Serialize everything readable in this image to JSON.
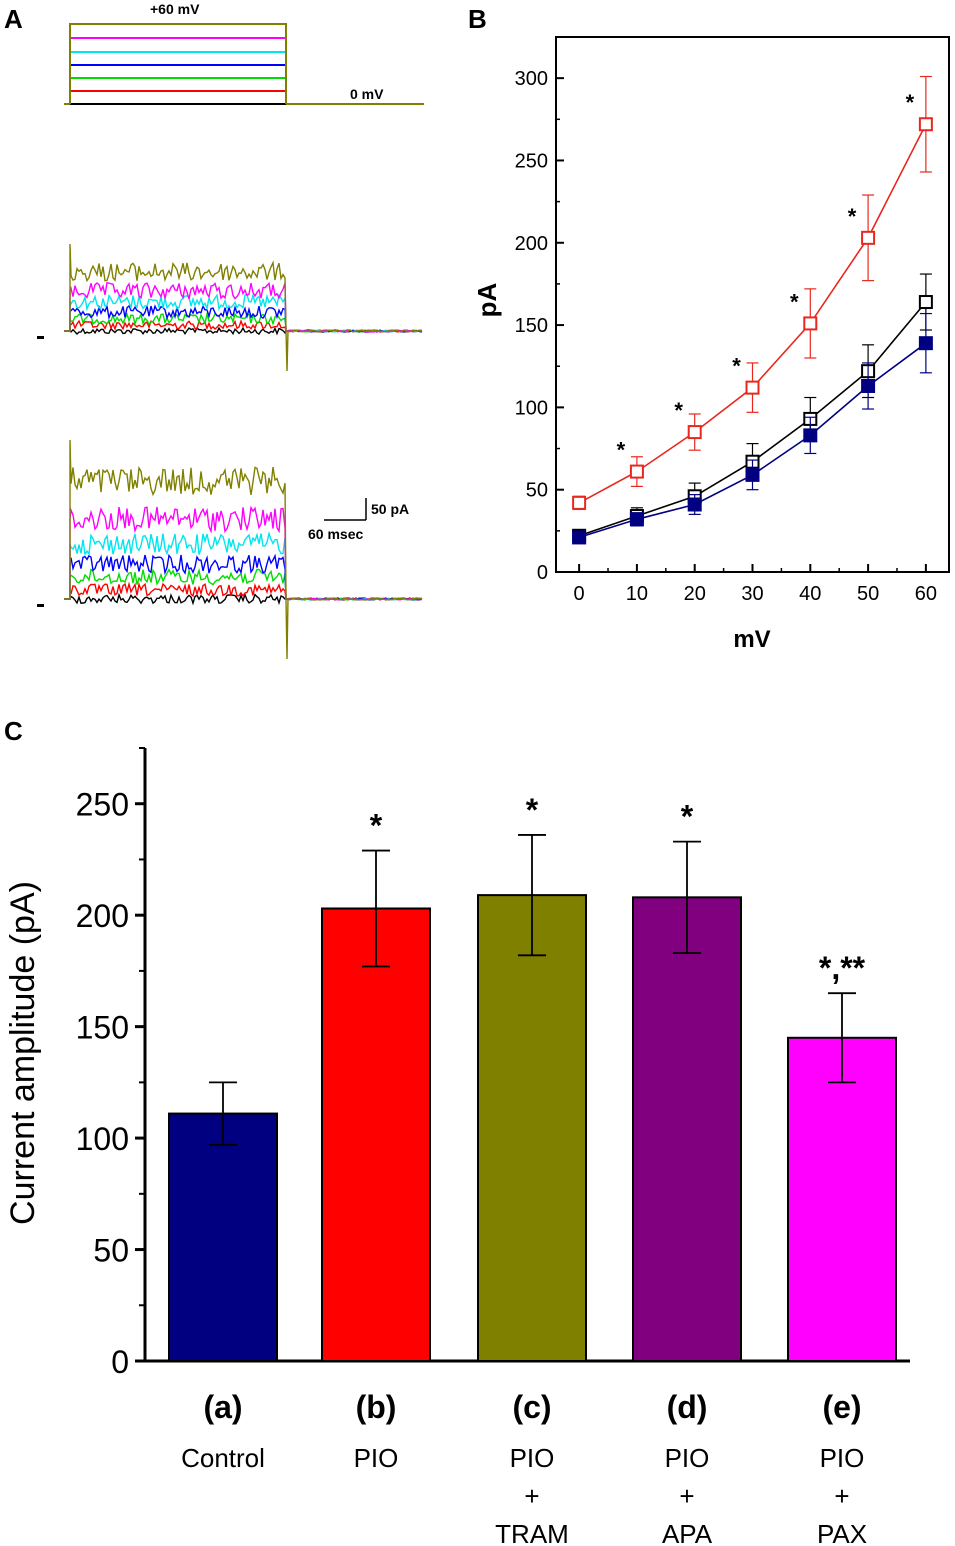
{
  "panels": {
    "a": "A",
    "b": "B",
    "c": "C"
  },
  "colors": {
    "black": "#000000",
    "red": "#ff0000",
    "olive": "#808000",
    "purple": "#800080",
    "magenta": "#ff00ff",
    "navy": "#000080",
    "cyan": "#00ffff",
    "blue": "#0000ff",
    "green": "#00ff00",
    "dark_red": "#cc0000"
  },
  "traces": {
    "voltage_top_label": "+60 mV",
    "voltage_bottom_label": "0 mV",
    "scale_current": "50 pA",
    "scale_time": "60 msec",
    "steps_mV": [
      0,
      10,
      20,
      30,
      40,
      50,
      60
    ],
    "step_colors": [
      "#000000",
      "#ff0000",
      "#00dd00",
      "#0000ff",
      "#00e5ee",
      "#ff00ff",
      "#808000"
    ]
  },
  "chart_data": [
    {
      "type": "line",
      "panel": "B",
      "xlabel": "mV",
      "ylabel": "pA",
      "xlim": [
        -4,
        64
      ],
      "ylim": [
        0,
        325
      ],
      "xticks": [
        0,
        10,
        20,
        30,
        40,
        50,
        60
      ],
      "yticks": [
        0,
        50,
        100,
        150,
        200,
        250,
        300
      ],
      "x": [
        0,
        10,
        20,
        30,
        40,
        50,
        60
      ],
      "series": [
        {
          "name": "series-red-open",
          "color": "#e8281e",
          "marker": "open-square",
          "values": [
            42,
            61,
            85,
            112,
            151,
            203,
            272
          ],
          "errors": [
            4,
            9,
            11,
            15,
            21,
            26,
            29
          ]
        },
        {
          "name": "series-black-open",
          "color": "#000000",
          "marker": "open-square",
          "values": [
            22,
            34,
            46,
            67,
            93,
            122,
            164
          ],
          "errors": [
            3,
            5,
            8,
            11,
            13,
            16,
            17
          ]
        },
        {
          "name": "series-blue-filled",
          "color": "#000080",
          "marker": "filled-square",
          "values": [
            21,
            32,
            41,
            59,
            83,
            113,
            139
          ],
          "errors": [
            3,
            4,
            6,
            9,
            11,
            14,
            18
          ]
        }
      ],
      "significance": {
        "x": [
          10,
          20,
          30,
          40,
          50,
          60
        ],
        "label": "*"
      }
    },
    {
      "type": "bar",
      "panel": "C",
      "ylabel": "Current amplitude (pA)",
      "ylim": [
        0,
        275
      ],
      "yticks": [
        0,
        50,
        100,
        150,
        200,
        250
      ],
      "categories": [
        "(a)",
        "(b)",
        "(c)",
        "(d)",
        "(e)"
      ],
      "category_desc": [
        [
          "Control"
        ],
        [
          "PIO"
        ],
        [
          "PIO",
          "+",
          "TRAM"
        ],
        [
          "PIO",
          "+",
          "APA"
        ],
        [
          "PIO",
          "+",
          "PAX"
        ]
      ],
      "values": [
        111,
        203,
        209,
        208,
        145
      ],
      "errors": [
        14,
        26,
        27,
        25,
        20
      ],
      "colors": [
        "#000080",
        "#ff0000",
        "#808000",
        "#800080",
        "#ff00ff"
      ],
      "annotations": [
        "",
        "*",
        "*",
        "*",
        "*,**"
      ]
    }
  ]
}
